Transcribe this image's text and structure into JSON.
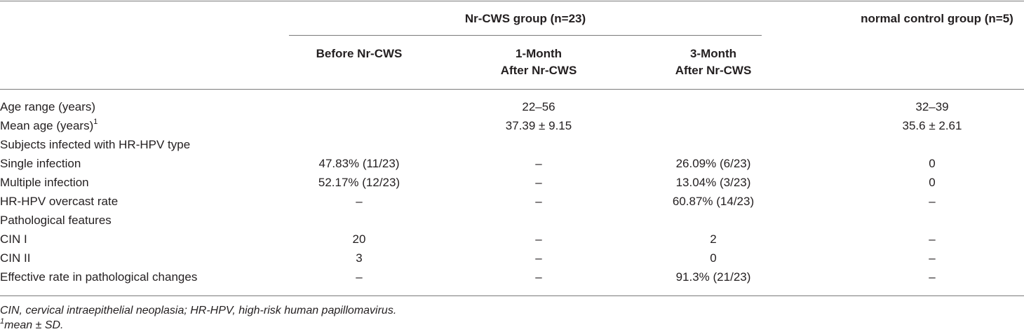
{
  "header": {
    "group_nr": "Nr-CWS group (n=23)",
    "group_control": "normal control group (n=5)",
    "col_before": "Before Nr-CWS",
    "col_1month_l1": "1-Month",
    "col_1month_l2": "After Nr-CWS",
    "col_3month_l1": "3-Month",
    "col_3month_l2": "After Nr-CWS"
  },
  "rows": [
    {
      "label": "Age range (years)",
      "sup": "",
      "before": "",
      "m1": "22–56",
      "m3": "",
      "ctrl": "32–39"
    },
    {
      "label": "Mean age (years)",
      "sup": "1",
      "before": "",
      "m1": "37.39 ± 9.15",
      "m3": "",
      "ctrl": "35.6 ± 2.61"
    },
    {
      "label": "Subjects infected with HR-HPV type",
      "sup": "",
      "before": "",
      "m1": "",
      "m3": "",
      "ctrl": ""
    },
    {
      "label": "Single infection",
      "sup": "",
      "before": "47.83% (11/23)",
      "m1": "–",
      "m3": "26.09% (6/23)",
      "ctrl": "0"
    },
    {
      "label": "Multiple infection",
      "sup": "",
      "before": "52.17% (12/23)",
      "m1": "–",
      "m3": "13.04% (3/23)",
      "ctrl": "0"
    },
    {
      "label": "HR-HPV overcast rate",
      "sup": "",
      "before": "–",
      "m1": "–",
      "m3": "60.87% (14/23)",
      "ctrl": "–"
    },
    {
      "label": "Pathological features",
      "sup": "",
      "before": "",
      "m1": "",
      "m3": "",
      "ctrl": ""
    },
    {
      "label": "CIN I",
      "sup": "",
      "before": "20",
      "m1": "–",
      "m3": "2",
      "ctrl": "–"
    },
    {
      "label": "CIN II",
      "sup": "",
      "before": "3",
      "m1": "–",
      "m3": "0",
      "ctrl": "–"
    },
    {
      "label": "Effective rate in pathological changes",
      "sup": "",
      "before": "–",
      "m1": "–",
      "m3": "91.3% (21/23)",
      "ctrl": "–"
    }
  ],
  "footnotes": {
    "abbrev": "CIN, cervical intraepithelial neoplasia; HR-HPV, high-risk human papillomavirus.",
    "note_sup": "1",
    "note_text": "mean ± SD."
  }
}
